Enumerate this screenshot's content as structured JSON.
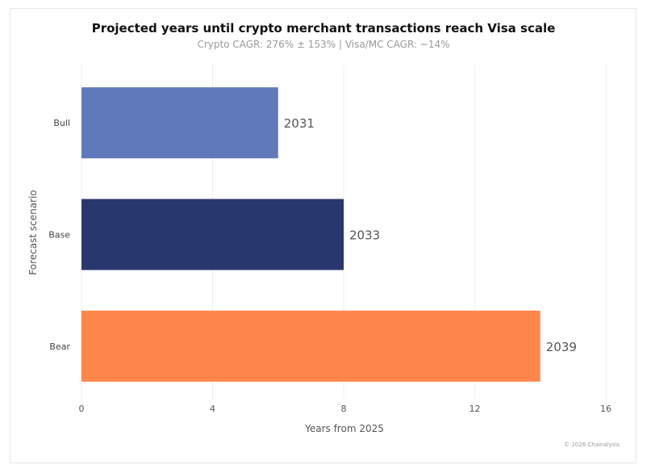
{
  "chart_data": {
    "type": "bar",
    "orientation": "horizontal",
    "title": "Projected years until crypto merchant transactions reach Visa scale",
    "subtitle": "Crypto CAGR: 276% ± 153% | Visa/MC CAGR: ~14%",
    "xlabel": "Years from 2025",
    "ylabel": "Forecast scenario",
    "categories": [
      "Bull",
      "Base",
      "Bear"
    ],
    "values": [
      6,
      8,
      14
    ],
    "data_labels": [
      "2031",
      "2033",
      "2039"
    ],
    "colors": [
      "#6079bb",
      "#28386f",
      "#ff864b"
    ],
    "xlim": [
      0,
      16
    ],
    "xticks": [
      "0",
      "4",
      "8",
      "12",
      "16"
    ],
    "grid": "vertical",
    "legend": "none"
  },
  "credit": "© 2026 Chainalysis"
}
